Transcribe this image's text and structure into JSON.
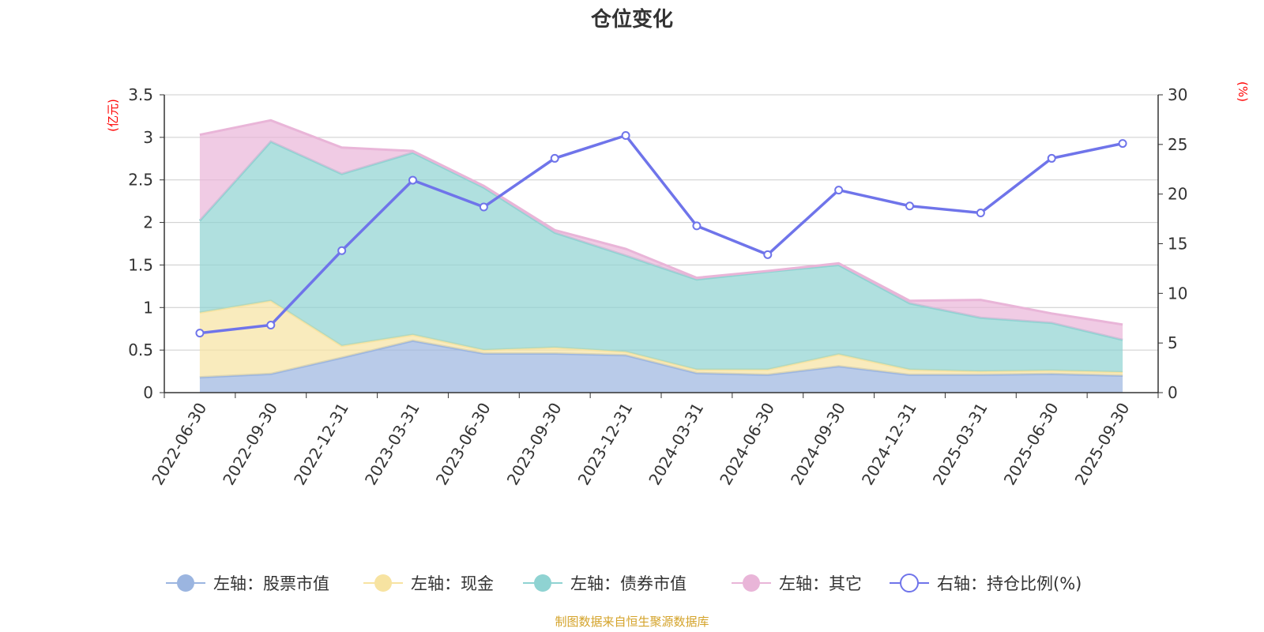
{
  "chart_data": {
    "type": "area",
    "title": "仓位变化",
    "categories": [
      "2022-06-30",
      "2022-09-30",
      "2022-12-31",
      "2023-03-31",
      "2023-06-30",
      "2023-09-30",
      "2023-12-31",
      "2024-03-31",
      "2024-06-30",
      "2024-09-30",
      "2024-12-31",
      "2025-03-31",
      "2025-06-30",
      "2025-09-30"
    ],
    "left_axis": {
      "unit": "(亿元)",
      "ylim": [
        0,
        3.5
      ],
      "ticks": [
        "0",
        "0.5",
        "1",
        "1.5",
        "2",
        "2.5",
        "3",
        "3.5"
      ]
    },
    "right_axis": {
      "unit": "(%)",
      "ylim": [
        0,
        30
      ],
      "ticks": [
        "0",
        "5",
        "10",
        "15",
        "20",
        "25",
        "30"
      ]
    },
    "stacked": true,
    "series": [
      {
        "name": "左轴：股票市值",
        "axis": "left",
        "type": "area",
        "color": "#9bb5e0",
        "values": [
          0.18,
          0.22,
          0.41,
          0.61,
          0.46,
          0.46,
          0.44,
          0.23,
          0.21,
          0.31,
          0.21,
          0.21,
          0.22,
          0.2
        ]
      },
      {
        "name": "左轴：现金",
        "axis": "left",
        "type": "area",
        "color": "#f7e3a1",
        "values": [
          0.76,
          0.86,
          0.14,
          0.07,
          0.04,
          0.07,
          0.04,
          0.04,
          0.06,
          0.14,
          0.06,
          0.04,
          0.04,
          0.04
        ]
      },
      {
        "name": "左轴：债券市值",
        "axis": "left",
        "type": "area",
        "color": "#8fd3d2",
        "values": [
          1.08,
          1.87,
          2.02,
          2.14,
          1.91,
          1.35,
          1.13,
          1.06,
          1.15,
          1.05,
          0.78,
          0.63,
          0.56,
          0.38
        ]
      },
      {
        "name": "左轴：其它",
        "axis": "left",
        "type": "area",
        "color": "#e9b5d8",
        "values": [
          1.01,
          0.25,
          0.31,
          0.02,
          0.02,
          0.03,
          0.08,
          0.02,
          0.01,
          0.02,
          0.03,
          0.21,
          0.11,
          0.18
        ]
      },
      {
        "name": "右轴：持仓比例(%)",
        "axis": "right",
        "type": "line",
        "color": "#6f74ea",
        "values": [
          6.0,
          6.8,
          14.3,
          21.4,
          18.7,
          23.6,
          25.9,
          16.8,
          13.9,
          20.4,
          18.8,
          18.1,
          23.6,
          25.1
        ]
      }
    ]
  },
  "footer": {
    "source": "制图数据来自恒生聚源数据库",
    "source_color": "#d4a32a"
  },
  "colors": {
    "axis": "#333333",
    "grid": "#cccccc",
    "unit": "#ff0000"
  }
}
